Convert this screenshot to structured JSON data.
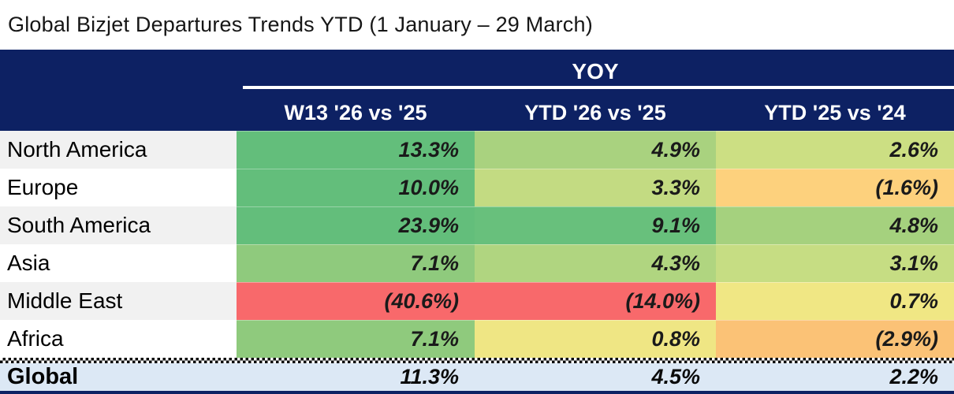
{
  "title": "Global Bizjet Departures Trends YTD (1 January – 29 March)",
  "table": {
    "group_header": "YOY",
    "columns": [
      "W13 '26 vs '25",
      "YTD '26 vs '25",
      "YTD '25 vs '24"
    ],
    "rows": [
      {
        "region": "North America",
        "values": [
          "13.3%",
          "4.9%",
          "2.6%"
        ],
        "colors": [
          "#63BE7B",
          "#A9D27F",
          "#CCDF83"
        ]
      },
      {
        "region": "Europe",
        "values": [
          "10.0%",
          "3.3%",
          "(1.6%)"
        ],
        "colors": [
          "#63BE7B",
          "#C3DB82",
          "#FDD17D"
        ]
      },
      {
        "region": "South America",
        "values": [
          "23.9%",
          "9.1%",
          "4.8%"
        ],
        "colors": [
          "#63BE7B",
          "#68C07C",
          "#A5D17E"
        ]
      },
      {
        "region": "Asia",
        "values": [
          "7.1%",
          "4.3%",
          "3.1%"
        ],
        "colors": [
          "#8FCA7D",
          "#B0D580",
          "#C6DD83"
        ]
      },
      {
        "region": "Middle East",
        "values": [
          "(40.6%)",
          "(14.0%)",
          "0.7%"
        ],
        "colors": [
          "#F8696B",
          "#F8696B",
          "#F0E784"
        ]
      },
      {
        "region": "Africa",
        "values": [
          "7.1%",
          "0.8%",
          "(2.9%)"
        ],
        "colors": [
          "#8FCA7D",
          "#EFE684",
          "#FBC276"
        ]
      }
    ],
    "total_row": {
      "region": "Global",
      "values": [
        "11.3%",
        "4.5%",
        "2.2%"
      ]
    }
  },
  "colors": {
    "header_navy": "#0D2163",
    "total_row_bg": "#DCE8F5",
    "stripe_gray": "#F1F1F1",
    "scale_green_max": "#63BE7B",
    "scale_yellow_mid": "#FFEB84",
    "scale_red_min": "#F8696B"
  },
  "chart_data": {
    "type": "table",
    "title": "Global Bizjet Departures Trends YTD (1 January – 29 March)",
    "group_header": "YOY",
    "categories": [
      "North America",
      "Europe",
      "South America",
      "Asia",
      "Middle East",
      "Africa",
      "Global"
    ],
    "series": [
      {
        "name": "W13 '26 vs '25",
        "values": [
          13.3,
          10.0,
          23.9,
          7.1,
          -40.6,
          7.1,
          11.3
        ]
      },
      {
        "name": "YTD '26 vs '25",
        "values": [
          4.9,
          3.3,
          9.1,
          4.3,
          -14.0,
          0.8,
          4.5
        ]
      },
      {
        "name": "YTD '25 vs '24",
        "values": [
          2.6,
          -1.6,
          4.8,
          3.1,
          0.7,
          -2.9,
          2.2
        ]
      }
    ]
  }
}
